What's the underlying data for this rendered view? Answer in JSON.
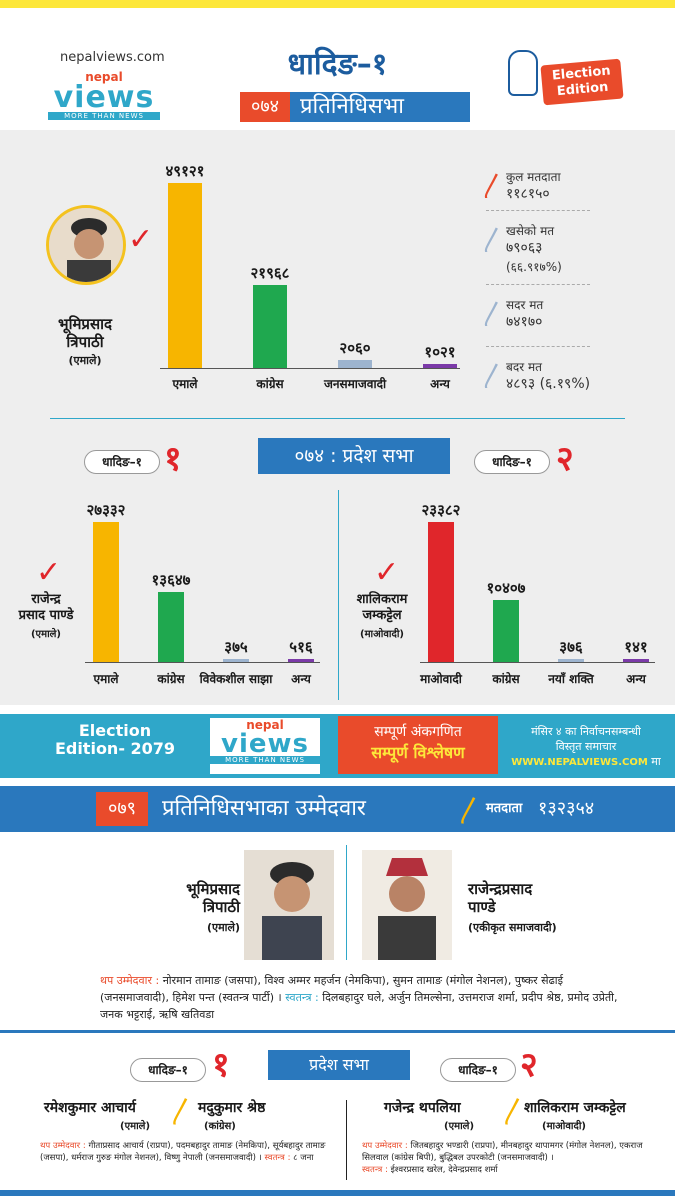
{
  "header": {
    "site": "nepalviews.com",
    "logo_top": "nepal",
    "logo_main": "views",
    "logo_tag": "MORE THAN NEWS",
    "title": "धादिङ–१",
    "badge_line1": "Election",
    "badge_line2": "Edition"
  },
  "fed2074": {
    "year": "०७४",
    "house": "प्रतिनिधिसभा",
    "winner_name_1": "भूमिप्रसाद",
    "winner_name_2": "त्रिपाठी",
    "winner_party": "(एमाले)",
    "stats": [
      {
        "label": "कुल मतदाता",
        "value": "११८१५०",
        "sub": ""
      },
      {
        "label": "खसेको मत",
        "value": "७९०६३",
        "sub": "(६६.९१७%)"
      },
      {
        "label": "सदर मत",
        "value": "७४१७०",
        "sub": ""
      },
      {
        "label": "बदर मत",
        "value": "४८९३",
        "sub": "(६.१९%)"
      }
    ]
  },
  "prov2074": {
    "header": "०७४ : प्रदेश सभा",
    "left_pill": "धादिङ–१",
    "left_num": "१",
    "right_pill": "धादिङ–१",
    "right_num": "२",
    "c1_name_1": "राजेन्द्र",
    "c1_name_2": "प्रसाद पाण्डे",
    "c1_party": "(एमाले)",
    "c2_name_1": "शालिकराम",
    "c2_name_2": "जम्कट्टेल",
    "c2_party": "(माओवादी)"
  },
  "chart_data": [
    {
      "type": "bar",
      "categories": [
        "एमाले",
        "कांग्रेस",
        "जनसमाजवादी",
        "अन्य"
      ],
      "values": [
        49121,
        21968,
        2060,
        1021
      ],
      "labels": [
        "४९१२१",
        "२१९६८",
        "२०६०",
        "१०२१"
      ],
      "colors": [
        "#f7b500",
        "#1fa84f",
        "#9db4cf",
        "#7b3aa8"
      ],
      "ylim": [
        0,
        49121
      ]
    },
    {
      "type": "bar",
      "categories": [
        "एमाले",
        "कांग्रेस",
        "विवेकशील साझा",
        "अन्य"
      ],
      "values": [
        27332,
        13647,
        375,
        516
      ],
      "labels": [
        "२७३३२",
        "१३६४७",
        "३७५",
        "५१६"
      ],
      "colors": [
        "#f7b500",
        "#1fa84f",
        "#9db4cf",
        "#7b3aa8"
      ],
      "ylim": [
        0,
        27332
      ]
    },
    {
      "type": "bar",
      "categories": [
        "माओवादी",
        "कांग्रेस",
        "नयाँ शक्ति",
        "अन्य"
      ],
      "values": [
        23382,
        10407,
        376,
        141
      ],
      "labels": [
        "२३३८२",
        "१०४०७",
        "३७६",
        "१४१"
      ],
      "colors": [
        "#e0262b",
        "#1fa84f",
        "#9db4cf",
        "#7b3aa8"
      ],
      "ylim": [
        0,
        23382
      ]
    }
  ],
  "banner": {
    "left_1": "Election",
    "left_2": "Edition- 2079",
    "mid_1": "सम्पूर्ण अंकगणित",
    "mid_2": "सम्पूर्ण विश्लेषण",
    "right_1": "मंसिर ४ का निर्वाचनसम्बन्धी",
    "right_2": "विस्तृत समाचार",
    "right_3": "WWW.NEPALVIEWS.COM",
    "right_4": "मा"
  },
  "fed2079": {
    "year": "०७९",
    "title": "प्रतिनिधिसभाका उम्मेदवार",
    "voters_label": "मतदाता",
    "voters_value": "१३२३५४",
    "c1_name_1": "भूमिप्रसाद",
    "c1_name_2": "त्रिपाठी",
    "c1_party": "(एमाले)",
    "c2_name_1": "राजेन्द्रप्रसाद",
    "c2_name_2": "पाण्डे",
    "c2_party": "(एकीकृत समाजवादी)",
    "others_label": "थप उम्मेदवार :",
    "others_text": "नोरमान तामाङ (जसपा), विश्व अम्मर महर्जन (नेमकिपा), सुमन तामाङ (मंगोल नेशनल), पुष्कर सेढाई (जनसमाजवादी), हिमेश पन्त (स्वतन्त्र पार्टी) ।",
    "indep_label": "स्वतन्त्र :",
    "indep_text": "दिलबहादुर घले, अर्जुन तिमल्सेना, उत्तमराज शर्मा, प्रदीप श्रेष्ठ, प्रमोद उप्रेती, जनक भट्टराई, ऋषि खतिवडा"
  },
  "prov2079": {
    "header": "प्रदेश सभा",
    "left_pill": "धादिङ–१",
    "left_num": "१",
    "right_pill": "धादिङ–१",
    "right_num": "२",
    "l_c1_name": "रमेशकुमार आचार्य",
    "l_c1_party": "(एमाले)",
    "l_c2_name": "मदुकुमार श्रेष्ठ",
    "l_c2_party": "(कांग्रेस)",
    "r_c1_name": "गजेन्द्र थपलिया",
    "r_c1_party": "(एमाले)",
    "r_c2_name": "शालिकराम जम्कट्टेल",
    "r_c2_party": "(माओवादी)",
    "l_others_label": "थप उम्मेदवार :",
    "l_others_text": "गीताप्रसाद आचार्य (राप्रपा), पदमबहादुर तामाङ (नेमकिपा), सूर्यबहादुर तामाङ (जसपा), धर्मराज गुरुङ मंगोल नेशनल), विष्णु नेपाली (जनसमाजवादी) ।",
    "l_indep_label": "स्वतन्त्र :",
    "l_indep_text": "८ जना",
    "r_others_label": "थप उम्मेदवार :",
    "r_others_text": "जितबहादुर भण्डारी (राप्रपा), मीनबहादुर थापामगर (मंगोल नेशनल), एकराज सिलवाल (कांग्रेस बिपी), बुद्धिबल उपरकोटी (जनसमाजवादी) ।",
    "r_indep_label": "स्वतन्त्र :",
    "r_indep_text": "ईश्वरप्रसाद खरेल, देवेन्द्रप्रसाद शर्मा"
  }
}
